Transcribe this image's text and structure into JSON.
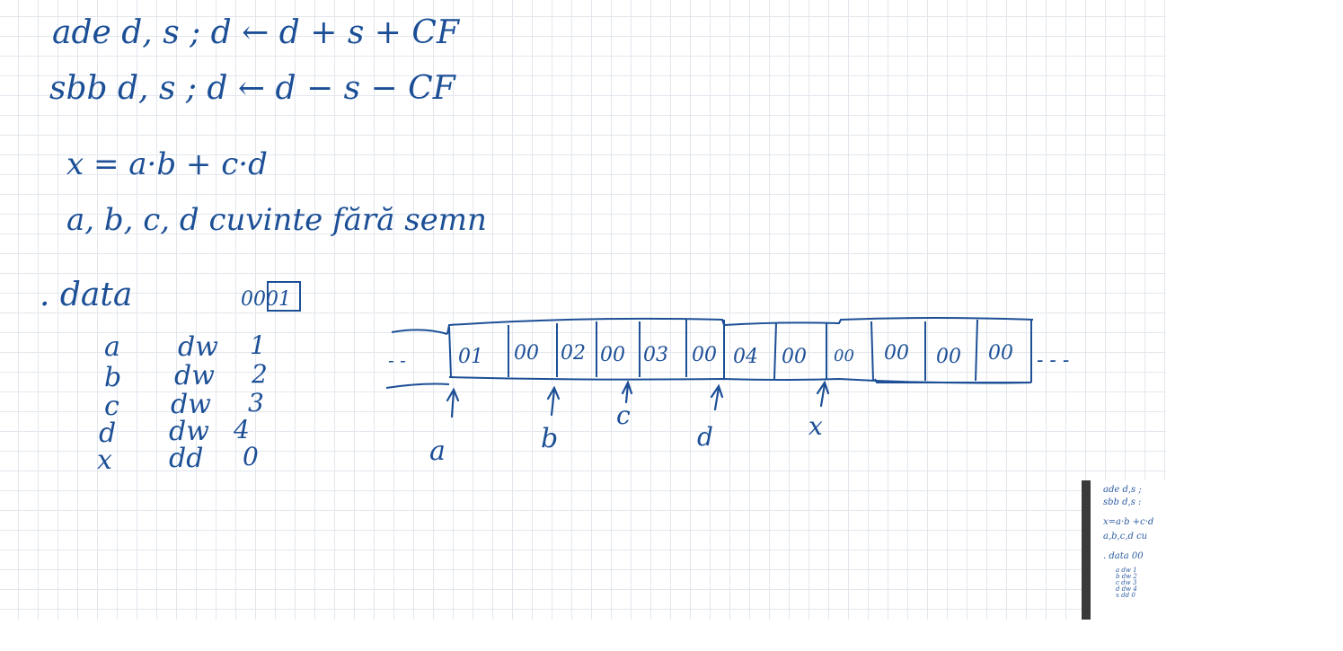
{
  "notes": {
    "lines": [
      "ade   d, s   ;   d ← d + s + CF",
      "sbb   d, s   ;   d ← d − s − CF",
      "x = a·b + c·d",
      "a, b, c, d   cuvinte fără semn",
      ". data",
      "0001"
    ],
    "declarations": [
      {
        "name": "a",
        "dir": "dw",
        "val": "1"
      },
      {
        "name": "b",
        "dir": "dw",
        "val": "2"
      },
      {
        "name": "c",
        "dir": "dw",
        "val": "3"
      },
      {
        "name": "d",
        "dir": "dw",
        "val": "4"
      },
      {
        "name": "x",
        "dir": "dd",
        "val": "0"
      }
    ]
  },
  "memory": {
    "lead": "- -",
    "trail": "- - -",
    "bytes": [
      "01",
      "00",
      "02",
      "00",
      "03",
      "00",
      "04",
      "00",
      "00",
      "00",
      "00",
      "00"
    ],
    "labels": [
      "a",
      "b",
      "c",
      "d",
      "x"
    ]
  },
  "thumbnail": {
    "lines": [
      "ade   d,s  ;",
      "sbb   d,s  :",
      "x=a·b +c·d",
      "a,b,c,d   cu",
      ". data      00"
    ],
    "small": [
      "a  dw 1",
      "b  dw 2",
      "c  dw 3",
      "d  dw 4",
      "x  dd 0"
    ]
  },
  "colors": {
    "ink": "#1c4f96",
    "grid": "#e3e7ed",
    "sidebar": "#3a3a3a"
  }
}
